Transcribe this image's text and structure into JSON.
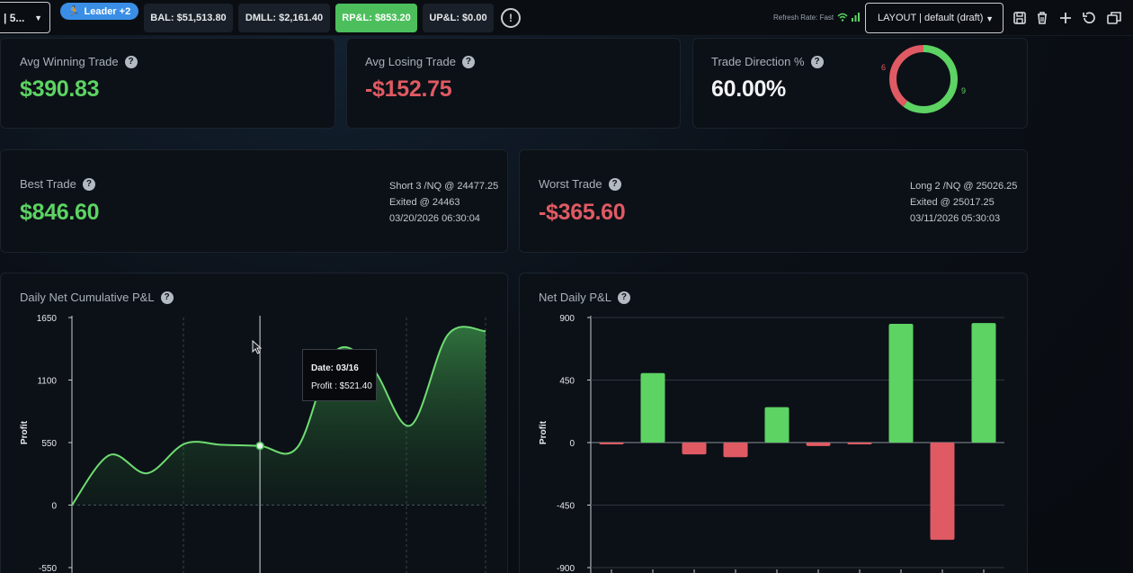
{
  "topbar": {
    "account_label": "| 5...",
    "leader_label": "Leader +2",
    "chips": {
      "bal": "BAL: $51,513.80",
      "dmll": "DMLL: $2,161.40",
      "rpl": "RP&L: $853.20",
      "upl": "UP&L: $0.00"
    },
    "refresh_rate": "Refresh Rate: Fast",
    "layout_label": "LAYOUT | default (draft)",
    "icons": [
      "save-icon",
      "trash-icon",
      "plus-icon",
      "undo-icon",
      "window-icon"
    ]
  },
  "cards": {
    "avg_win": {
      "label": "Avg Winning Trade",
      "value": "$390.83"
    },
    "avg_loss": {
      "label": "Avg Losing Trade",
      "value": "-$152.75"
    },
    "direction": {
      "label": "Trade Direction %",
      "value": "60.00%",
      "short_count": "6",
      "long_count": "9"
    },
    "best": {
      "label": "Best Trade",
      "value": "$846.60",
      "line1": "Short 3 /NQ @ 24477.25",
      "line2": "Exited @ 24463",
      "line3": "03/20/2026 06:30:04"
    },
    "worst": {
      "label": "Worst Trade",
      "value": "-$365.60",
      "line1": "Long 2 /NQ @ 25026.25",
      "line2": "Exited @ 25017.25",
      "line3": "03/11/2026 05:30:03"
    }
  },
  "cumulative_chart": {
    "title": "Daily Net Cumulative P&L",
    "tooltip_date": "Date: 03/16",
    "tooltip_profit": "Profit : $521.40"
  },
  "daily_chart": {
    "title": "Net Daily P&L"
  },
  "colors": {
    "positive": "#5cd363",
    "negative": "#e05a63",
    "accent": "#3a8ee6"
  },
  "chart_data": [
    {
      "type": "area",
      "title": "Daily Net Cumulative P&L",
      "ylabel": "Profit",
      "ylim": [
        -550,
        1650
      ],
      "yticks": [
        "1650",
        "1100",
        "550",
        "0",
        "-550"
      ],
      "x_index": [
        0,
        1,
        2,
        3,
        4,
        5,
        6,
        7,
        8,
        9,
        10,
        11
      ],
      "values": [
        0,
        440,
        280,
        540,
        530,
        521.4,
        510,
        1350,
        1200,
        700,
        1500,
        1530
      ],
      "grid": true
    },
    {
      "type": "bar",
      "title": "Net Daily P&L",
      "ylabel": "Profit",
      "ylim": [
        -900,
        900
      ],
      "yticks": [
        "900",
        "450",
        "0",
        "-450",
        "-900"
      ],
      "values": [
        -10,
        500,
        -85,
        -105,
        255,
        -25,
        -12,
        855,
        -700,
        860
      ],
      "grid": true
    }
  ]
}
